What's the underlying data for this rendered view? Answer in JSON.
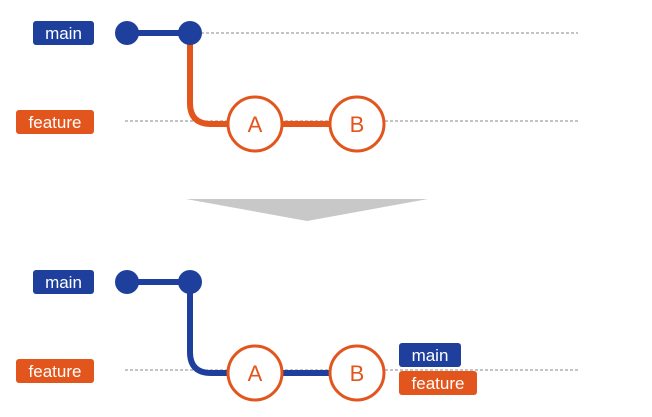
{
  "colors": {
    "main": "#1f3f9c",
    "feature": "#e2561d",
    "guide": "#8a8a8a",
    "arrow": "#c8c8c8",
    "commit_fill": "#ffffff"
  },
  "before": {
    "branch_labels": {
      "main": "main",
      "feature": "feature"
    },
    "commits": [
      "A",
      "B"
    ]
  },
  "after": {
    "branch_labels": {
      "main": "main",
      "feature": "feature"
    },
    "commits": [
      "A",
      "B"
    ],
    "tip_labels": {
      "main": "main",
      "feature": "feature"
    }
  },
  "transition_icon": "down-arrow-icon"
}
